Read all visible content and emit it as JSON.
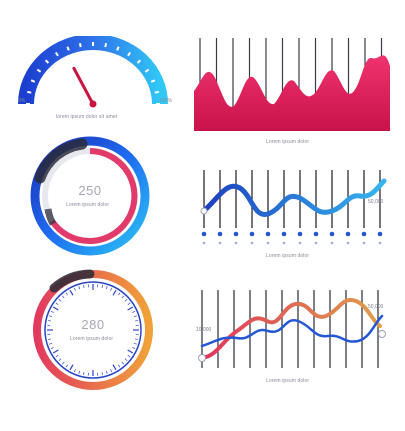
{
  "speedometer": {
    "min_label": "0%",
    "max_label": "100%",
    "caption": "lorem ipsum dolor sit amet",
    "level": 0.35,
    "colors": {
      "arc_start": "#1c3fd0",
      "arc_end": "#30c8f5",
      "needle": "#c8153f"
    }
  },
  "area_chart": {
    "caption": "Lorem ipsum dolor",
    "color": "#e81a5c"
  },
  "ring_one": {
    "value": "250",
    "caption": "Lorem ipsum dolor",
    "colors": {
      "outer": "#1f6cf0",
      "inner": "#e23a6a",
      "dark": "#2a2a38"
    }
  },
  "wave_chart": {
    "caption": "Lorem ipsum dolor",
    "end_label": "50,000",
    "color_start": "#1d3fbd",
    "color_end": "#36b6f0"
  },
  "ring_two": {
    "value": "280",
    "caption": "Lorem ipsum dolor",
    "colors": {
      "outer_start": "#e23a5f",
      "outer_end": "#f0a13a",
      "ticks": "#2a44c8"
    }
  },
  "dual_wave_chart": {
    "caption": "Lorem ipsum dolor",
    "start_label": "10,000",
    "end_label": "50,000",
    "colors": {
      "line_a": "#e0345c",
      "line_b": "#e0a04c",
      "line_c": "#2457d6"
    }
  }
}
